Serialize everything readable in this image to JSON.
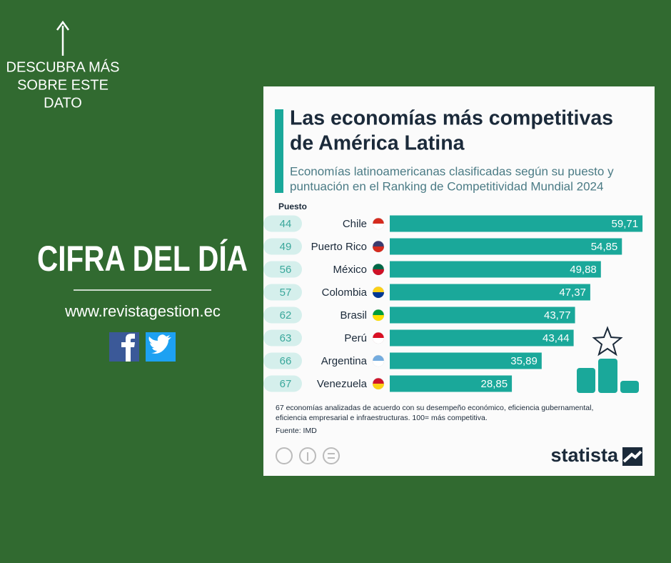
{
  "promo": {
    "arrow_text": [
      "DESCUBRA MÁS",
      "SOBRE ESTE",
      "DATO"
    ],
    "headline": "CIFRA DEL DÍA",
    "url": "www.revistagestion.ec"
  },
  "chart_data": {
    "type": "bar",
    "orientation": "horizontal",
    "title": [
      "Las economías más competitivas",
      "de América Latina"
    ],
    "subtitle": [
      "Economías latinoamericanas clasificadas según su puesto y",
      "puntuación en el Ranking de Competitividad Mundial 2024"
    ],
    "rank_label": "Puesto",
    "categories": [
      "Chile",
      "Puerto Rico",
      "México",
      "Colombia",
      "Brasil",
      "Perú",
      "Argentina",
      "Venezuela"
    ],
    "ranks": [
      44,
      49,
      56,
      57,
      62,
      63,
      66,
      67
    ],
    "values": [
      59.71,
      54.85,
      49.88,
      47.37,
      43.77,
      43.44,
      35.89,
      28.85
    ],
    "value_labels": [
      "59,71",
      "54,85",
      "49,88",
      "47,37",
      "43,77",
      "43,44",
      "35,89",
      "28,85"
    ],
    "color": "#1aa89a",
    "note": [
      "67 economías analizadas de acuerdo con su desempeño económico, eficiencia gubernamental,",
      "eficiencia empresarial e infraestructuras. 100= más competitiva."
    ],
    "source": "Fuente: IMD"
  },
  "brand": "statista"
}
